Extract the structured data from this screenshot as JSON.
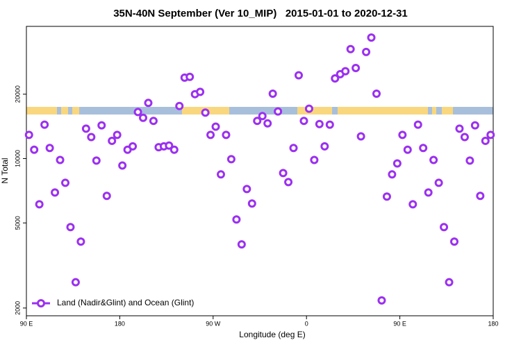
{
  "chart_data": {
    "type": "scatter",
    "title": "35N-40N September (Ver 10_MIP)   2015-01-01 to 2020-12-31",
    "x_label": "Longitude (deg E)",
    "y_label": "N Total",
    "log_y": true,
    "legend": "bottom left",
    "xlim": [
      90,
      540
    ],
    "xticks": [
      {
        "value": 90,
        "label": "90 E"
      },
      {
        "value": 180,
        "label": "180"
      },
      {
        "value": 270,
        "label": "90 W"
      },
      {
        "value": 360,
        "label": "0"
      },
      {
        "value": 450,
        "label": "90 E"
      },
      {
        "value": 540,
        "label": "180"
      }
    ],
    "ylim": [
      1840,
      41500
    ],
    "yticks": [
      2000,
      5000,
      10000,
      20000
    ],
    "series": [
      {
        "name": "Land (Nadir&Glint) and Ocean (Glint)",
        "color": "#9b30f0",
        "x": [
          92.5,
          97.5,
          102.5,
          107.5,
          112.5,
          117.5,
          122.5,
          127.5,
          132.5,
          137.5,
          142.5,
          147.5,
          152.5,
          157.5,
          162.5,
          167.5,
          172.5,
          177.5,
          182.5,
          187.5,
          192.5,
          197.5,
          202.5,
          207.5,
          212.5,
          217.5,
          222.5,
          227.5,
          232.5,
          237.5,
          242.5,
          247.5,
          252.5,
          257.5,
          262.5,
          267.5,
          272.5,
          277.5,
          282.5,
          287.5,
          292.5,
          297.5,
          302.5,
          307.5,
          312.5,
          317.5,
          322.5,
          327.5,
          332.5,
          337.5,
          342.5,
          347.5,
          352.5,
          357.5,
          362.5,
          367.5,
          372.5,
          377.5,
          382.5,
          387.5,
          392.5,
          397.5,
          402.5,
          407.5,
          412.5,
          417.5,
          422.5,
          427.5,
          432.5,
          437.5,
          442.5,
          447.5,
          452.5,
          457.5,
          462.5,
          467.5,
          472.5,
          477.5,
          482.5,
          487.5,
          492.5,
          497.5,
          502.5,
          507.5,
          512.5,
          517.5,
          522.5,
          527.5,
          532.5,
          537.5
        ],
        "values": [
          12900,
          11000,
          6110,
          14400,
          11200,
          6940,
          9850,
          7700,
          4780,
          2640,
          4090,
          13800,
          12600,
          9780,
          14300,
          6690,
          12100,
          12900,
          9280,
          11000,
          11400,
          16500,
          15500,
          18200,
          15000,
          11300,
          11400,
          11500,
          11000,
          17600,
          23900,
          24100,
          20000,
          20500,
          16400,
          12900,
          14100,
          8430,
          12900,
          9930,
          5190,
          3970,
          7200,
          6160,
          15000,
          15800,
          14600,
          20100,
          16600,
          8550,
          7760,
          11200,
          24500,
          15000,
          17100,
          9850,
          14500,
          11400,
          14400,
          23700,
          24800,
          25600,
          32500,
          26500,
          12700,
          31500,
          36800,
          20100,
          2170,
          6640,
          8430,
          9490,
          12900,
          11000,
          6110,
          14400,
          11200,
          6940,
          9850,
          7700,
          4780,
          2640,
          4090,
          13800,
          12600,
          9780,
          14300,
          6690,
          12100,
          12900
        ]
      }
    ]
  }
}
